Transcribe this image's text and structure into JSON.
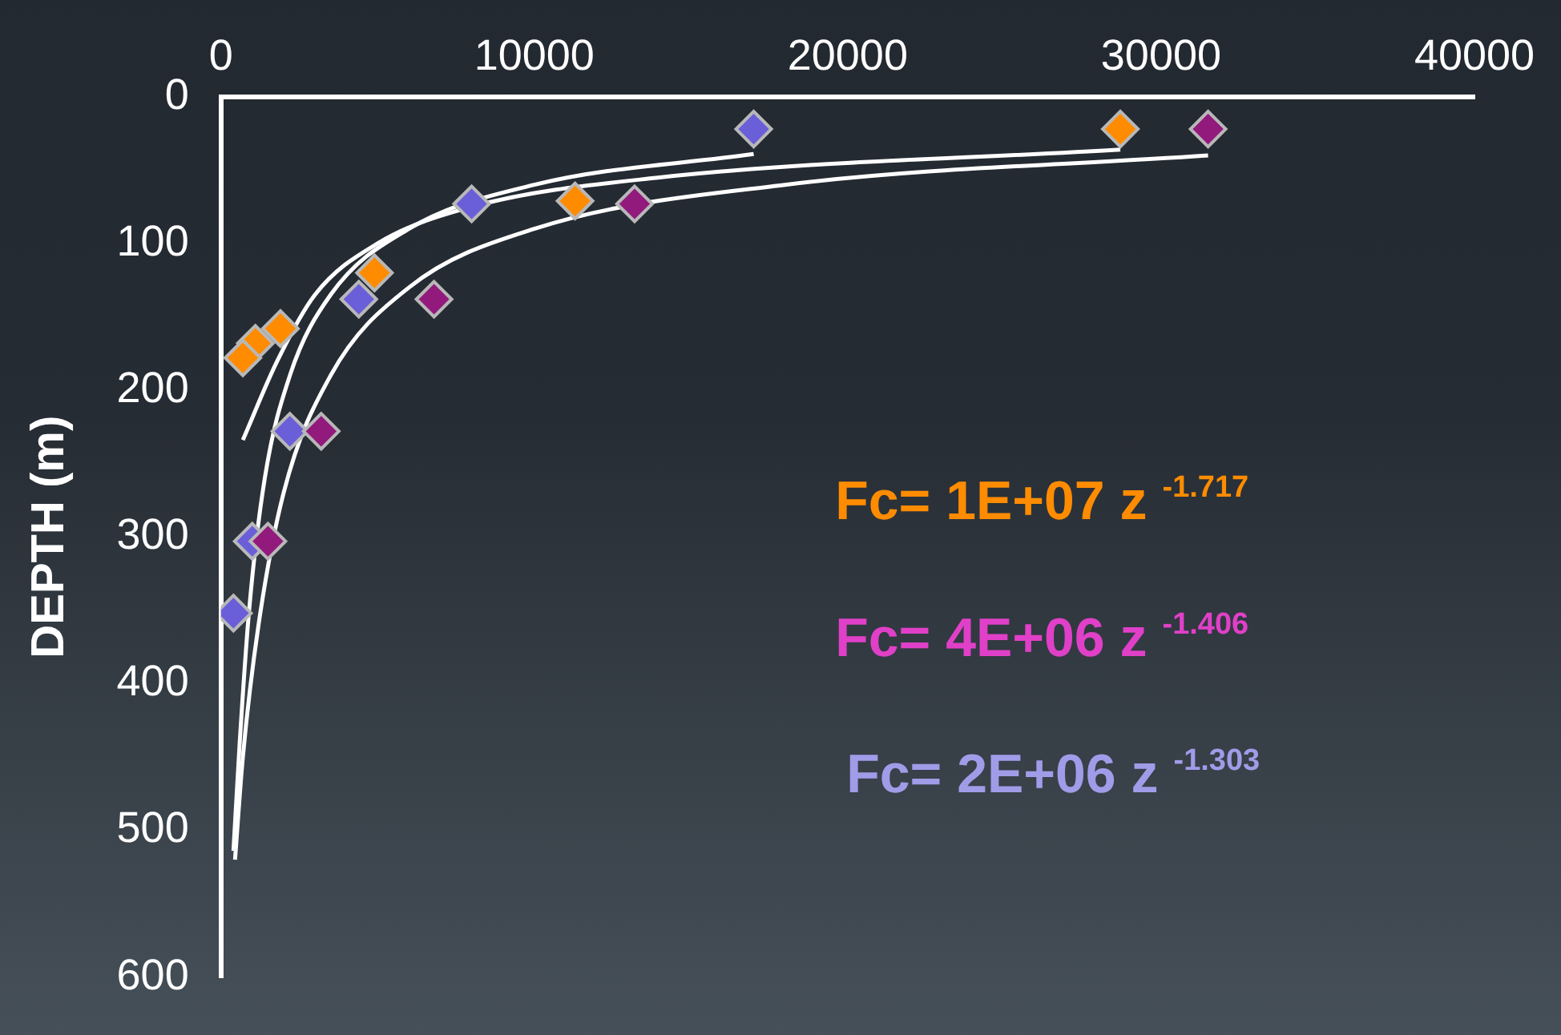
{
  "chart_data": {
    "type": "scatter",
    "ylabel": "DEPTH (m)",
    "xlim": [
      0,
      40000
    ],
    "xticks": [
      0,
      10000,
      20000,
      30000,
      40000
    ],
    "ylim": [
      600,
      0
    ],
    "yticks": [
      0,
      100,
      200,
      300,
      400,
      500,
      600
    ],
    "grid": false,
    "legend": false,
    "marker": "diamond",
    "series": [
      {
        "color": "#ff8c00",
        "x": [
          28700,
          11300,
          4900,
          1900,
          1100,
          700
        ],
        "values": [
          22,
          71,
          120,
          158,
          168,
          178
        ]
      },
      {
        "color": "#921a7c",
        "x": [
          31500,
          13200,
          6800,
          3200,
          1500
        ],
        "values": [
          22,
          73,
          138,
          228,
          303
        ]
      },
      {
        "color": "#6a5fd8",
        "x": [
          17000,
          8000,
          4400,
          2200,
          1000,
          400
        ],
        "values": [
          22,
          73,
          138,
          228,
          303,
          352
        ]
      },
      {
        "type": "line",
        "color": "#ffffff",
        "marker": "none",
        "x": [
          28700,
          14000,
          8000,
          5000,
          3000,
          1800,
          700
        ],
        "values": [
          36,
          55,
          75,
          100,
          135,
          180,
          234
        ]
      },
      {
        "type": "line",
        "color": "#ffffff",
        "marker": "none",
        "x": [
          31500,
          18000,
          10000,
          6000,
          3500,
          2000,
          1200,
          700,
          450
        ],
        "values": [
          40,
          60,
          90,
          130,
          190,
          270,
          360,
          450,
          520
        ]
      },
      {
        "type": "line",
        "color": "#ffffff",
        "marker": "none",
        "x": [
          17000,
          10000,
          6000,
          3500,
          2200,
          1400,
          900,
          600,
          400
        ],
        "values": [
          39,
          60,
          90,
          135,
          190,
          260,
          350,
          440,
          514
        ]
      }
    ],
    "annotations": [
      "Fc= 1E+07 z $^{-1.717}$",
      "Fc= 4E+06 z $^{-1.406}$",
      "Fc= 2E+06 z $^{-1.303}$"
    ]
  }
}
